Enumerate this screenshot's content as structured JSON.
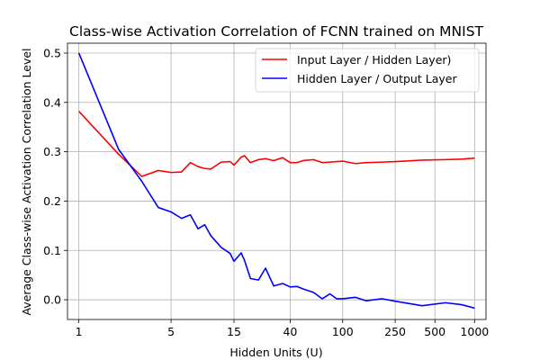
{
  "chart_data": {
    "type": "line",
    "title": "Class-wise Activation Correlation of FCNN trained on MNIST",
    "xlabel": "Hidden Units (U)",
    "ylabel": "Average Class-wise Activation Correlation Level",
    "x_scale": "log",
    "xlim": [
      0.82,
      1220
    ],
    "ylim": [
      -0.04,
      0.52
    ],
    "x_ticks": [
      1,
      5,
      15,
      40,
      100,
      250,
      500,
      1000
    ],
    "x_tick_labels": [
      "1",
      "5",
      "15",
      "40",
      "100",
      "250",
      "500",
      "1000"
    ],
    "y_ticks": [
      0.0,
      0.1,
      0.2,
      0.3,
      0.4,
      0.5
    ],
    "y_tick_labels": [
      "0.0",
      "0.1",
      "0.2",
      "0.3",
      "0.4",
      "0.5"
    ],
    "grid": true,
    "legend_position": "top-right",
    "series": [
      {
        "name": "Input Layer / Hidden Layer)",
        "color": "#ff0000",
        "x": [
          1,
          2,
          3,
          4,
          5,
          6,
          7,
          8,
          9,
          10,
          12,
          14,
          15,
          17,
          18,
          20,
          23,
          26,
          30,
          35,
          40,
          45,
          50,
          60,
          70,
          80,
          100,
          125,
          150,
          200,
          250,
          400,
          600,
          800,
          1000
        ],
        "y": [
          0.382,
          0.295,
          0.25,
          0.262,
          0.258,
          0.259,
          0.278,
          0.27,
          0.266,
          0.265,
          0.279,
          0.28,
          0.273,
          0.289,
          0.292,
          0.278,
          0.284,
          0.286,
          0.282,
          0.288,
          0.278,
          0.278,
          0.282,
          0.284,
          0.278,
          0.279,
          0.281,
          0.276,
          0.278,
          0.279,
          0.28,
          0.283,
          0.284,
          0.285,
          0.287
        ]
      },
      {
        "name": "Hidden Layer / Output Layer",
        "color": "#0000ff",
        "x": [
          1,
          2,
          3,
          4,
          5,
          6,
          7,
          8,
          9,
          10,
          12,
          14,
          15,
          17,
          18,
          20,
          23,
          26,
          30,
          35,
          40,
          45,
          50,
          60,
          70,
          80,
          90,
          100,
          125,
          150,
          200,
          250,
          400,
          600,
          800,
          1000
        ],
        "y": [
          0.5,
          0.305,
          0.24,
          0.187,
          0.178,
          0.165,
          0.172,
          0.144,
          0.152,
          0.13,
          0.106,
          0.094,
          0.078,
          0.095,
          0.08,
          0.043,
          0.04,
          0.064,
          0.028,
          0.033,
          0.026,
          0.027,
          0.022,
          0.015,
          0.002,
          0.012,
          0.002,
          0.002,
          0.005,
          -0.002,
          0.002,
          -0.003,
          -0.012,
          -0.006,
          -0.01,
          -0.017
        ]
      }
    ]
  }
}
